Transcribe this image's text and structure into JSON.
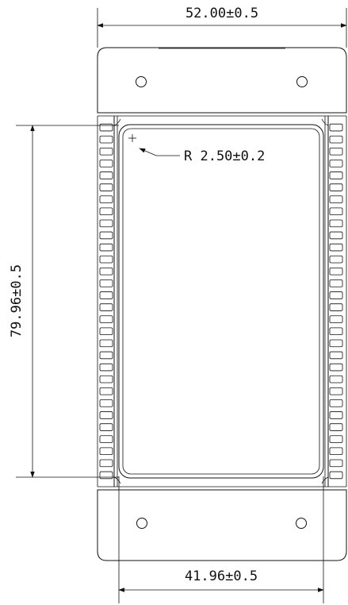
{
  "dimensions": {
    "overall_width": "52.00±0.5",
    "height": "79.96±0.5",
    "inner_width": "41.96±0.5",
    "radius": "R 2.50±0.2"
  },
  "drawing": {
    "fin_count_per_side": 30,
    "mounting_holes": 4
  },
  "colors": {
    "line": "#111111",
    "background": "#ffffff"
  }
}
